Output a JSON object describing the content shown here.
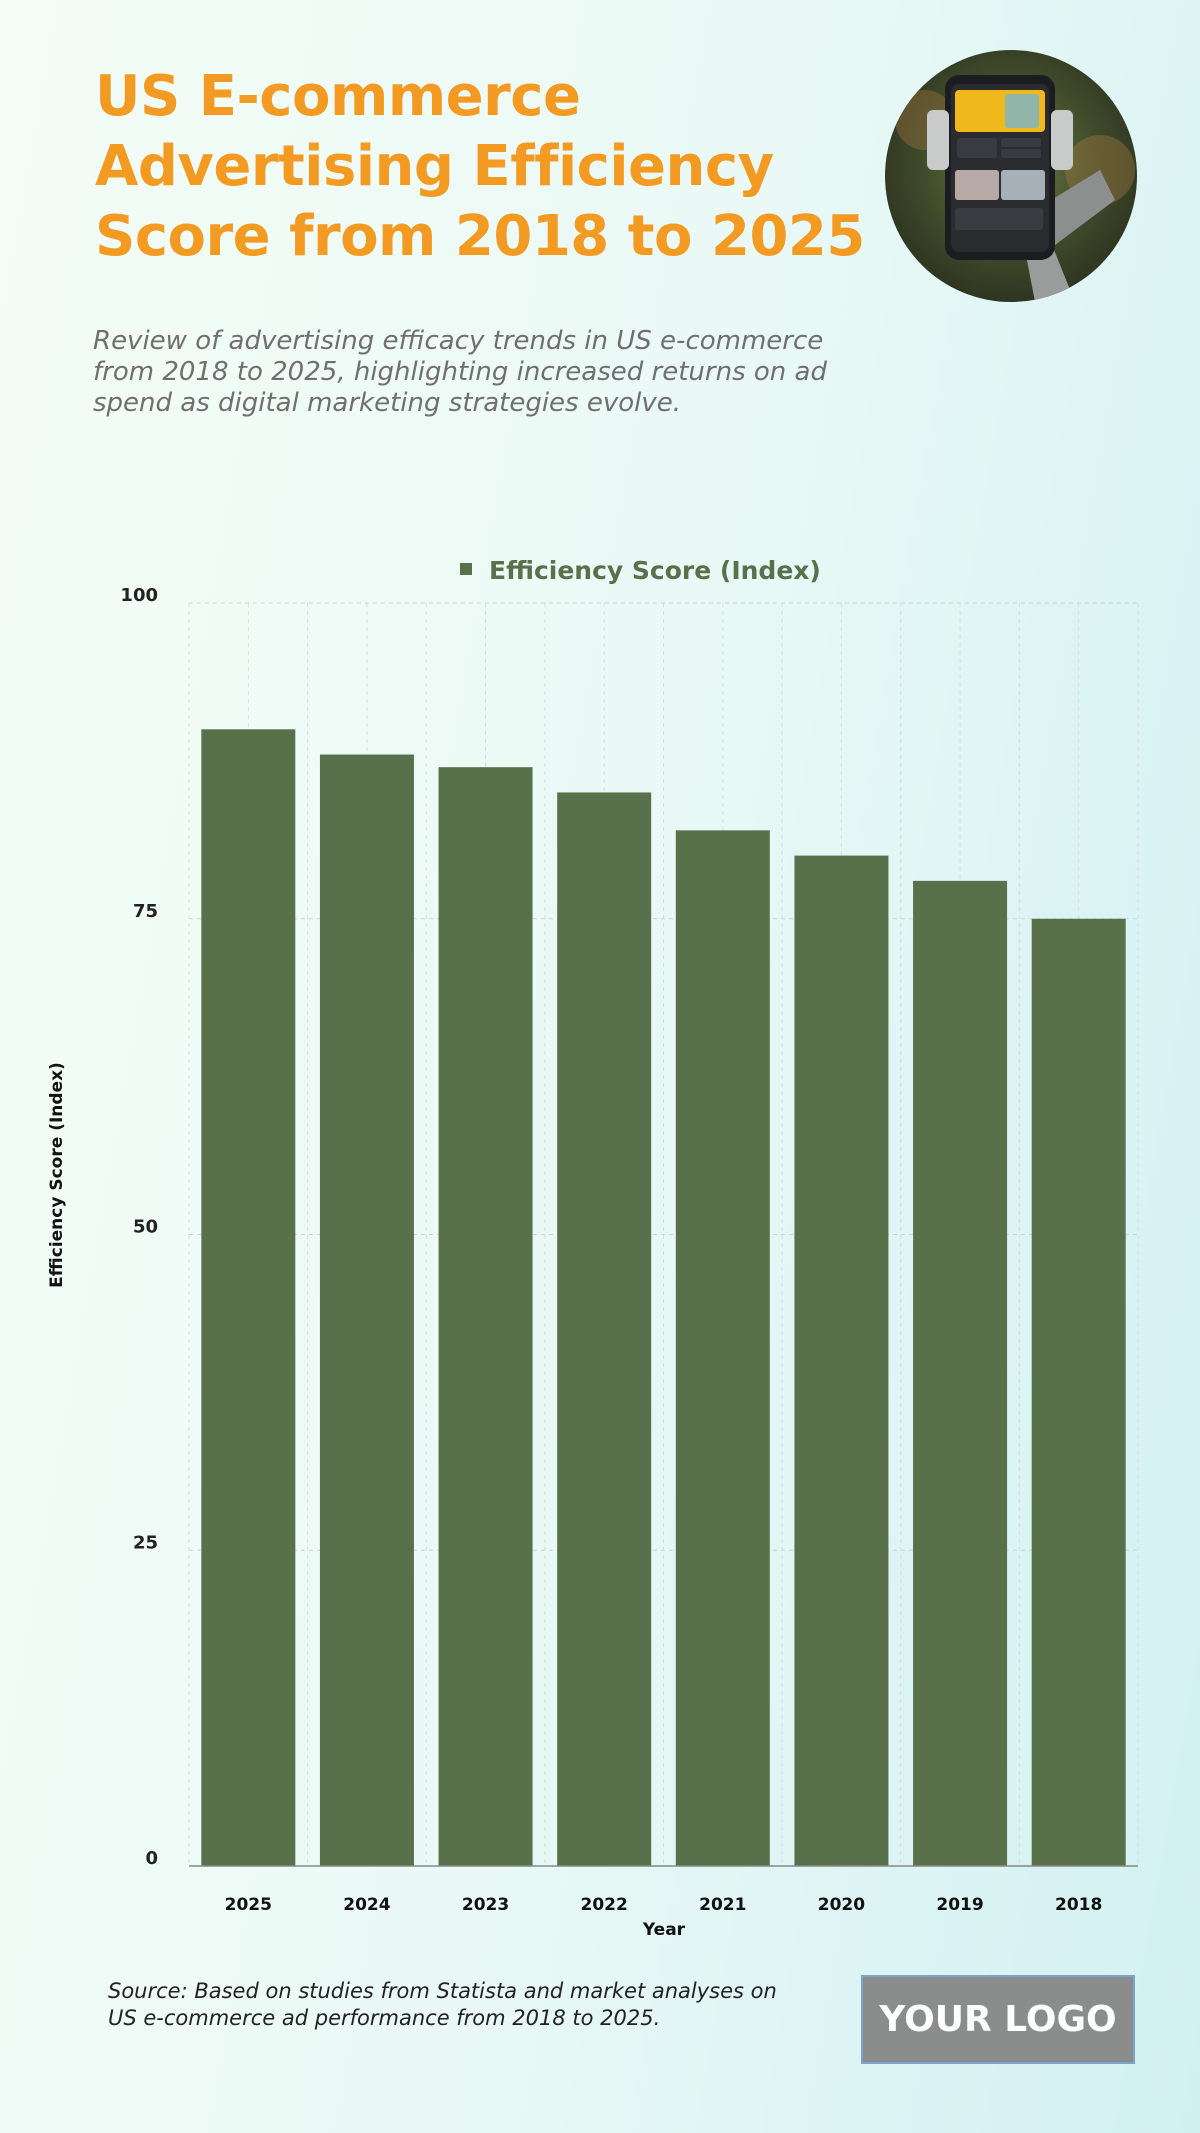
{
  "header": {
    "title": "US E-commerce Advertising Efficiency Score from 2018 to 2025",
    "subtitle": "Review of advertising efficacy trends in US e-commerce from 2018 to 2025, highlighting increased returns on ad spend as digital marketing strategies evolve."
  },
  "footer": {
    "source": "Source: Based on studies from Statista and market analyses on US e-commerce ad performance from 2018 to 2025.",
    "logo_text": "YOUR LOGO"
  },
  "colors": {
    "title": "#f29a22",
    "bar": "#58714a",
    "legend_text": "#58714a"
  },
  "chart_data": {
    "type": "bar",
    "title": "",
    "xlabel": "Year",
    "ylabel": "Efficiency Score (Index)",
    "categories": [
      "2025",
      "2024",
      "2023",
      "2022",
      "2021",
      "2020",
      "2019",
      "2018"
    ],
    "series": [
      {
        "name": "Efficiency Score (Index)",
        "values": [
          90,
          88,
          87,
          85,
          82,
          80,
          78,
          75
        ]
      }
    ],
    "ylim": [
      0,
      100
    ],
    "yticks": [
      0,
      25,
      50,
      75,
      100
    ],
    "grid": true,
    "legend_position": "top-center"
  }
}
